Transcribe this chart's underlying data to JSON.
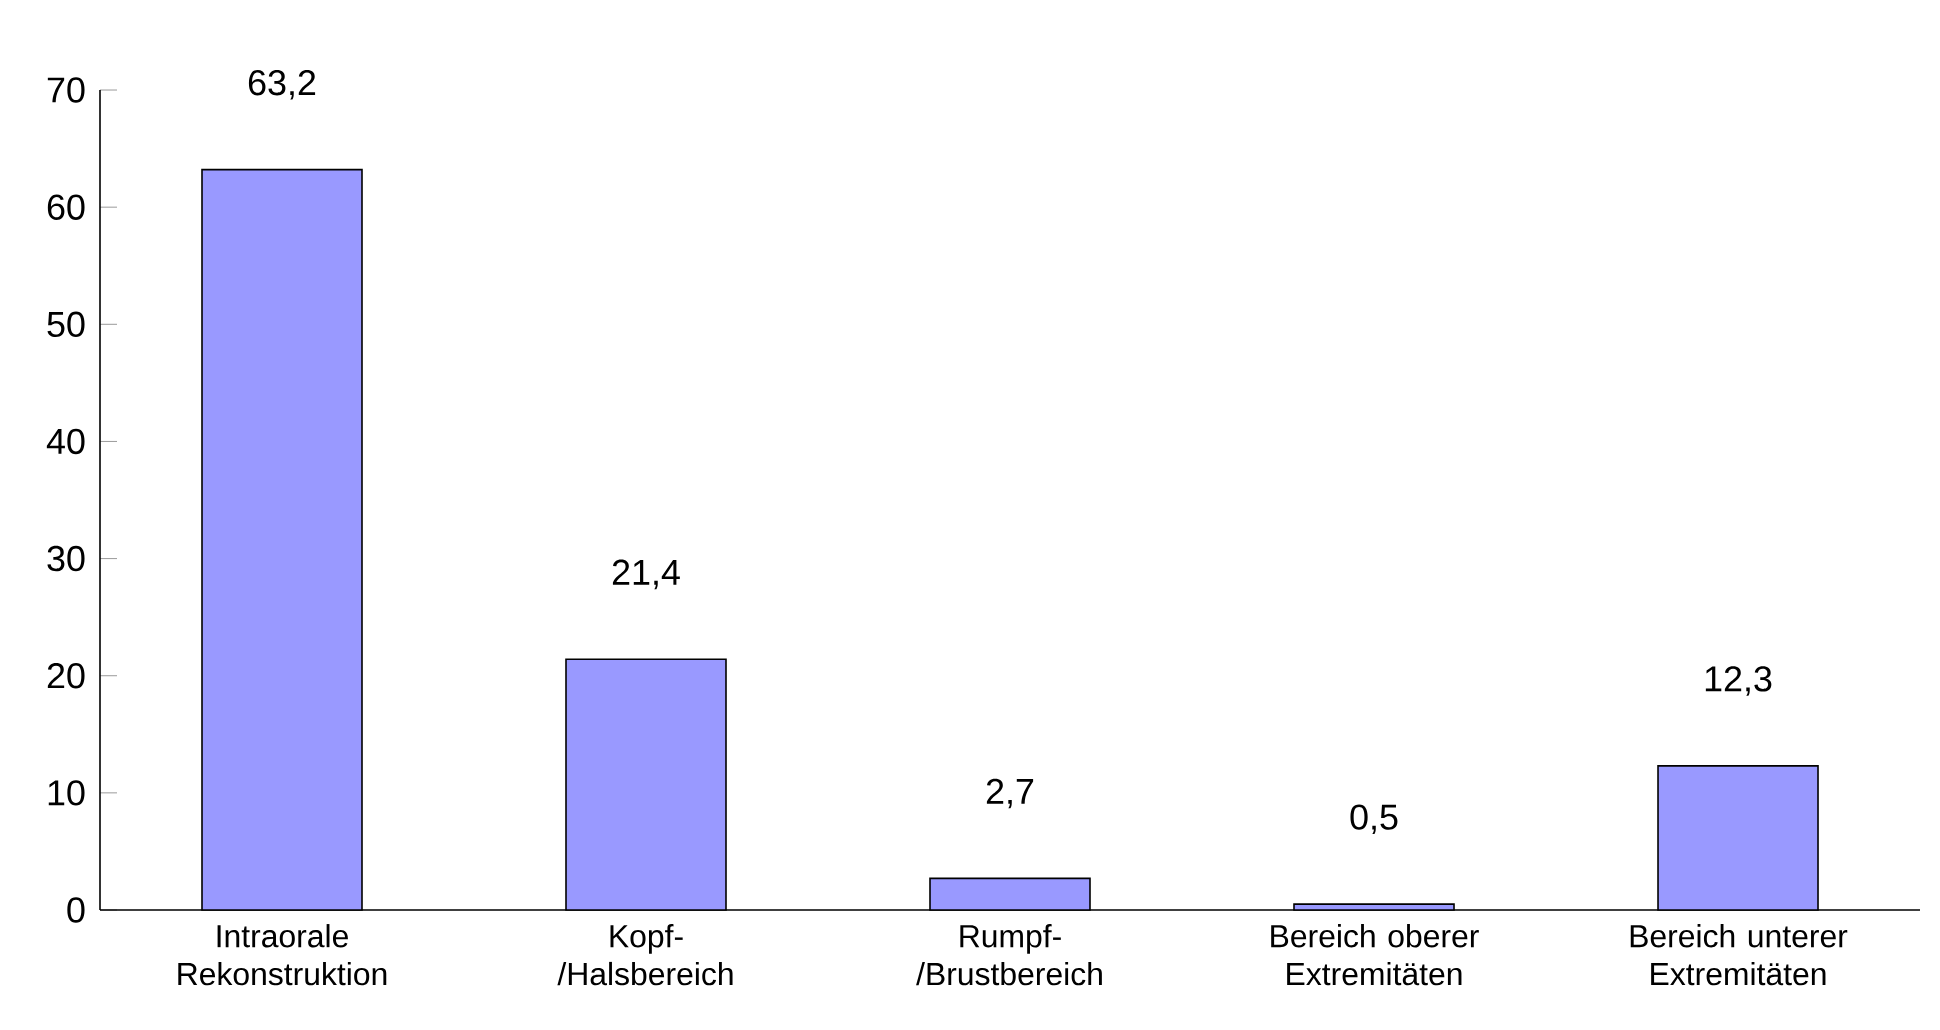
{
  "chart_data": {
    "type": "bar",
    "categories": [
      "Intraorale Rekonstruktion",
      "Kopf- /Halsbereich",
      "Rumpf- /Brustbereich",
      "Bereich oberer Extremitäten",
      "Bereich unterer Extremitäten"
    ],
    "values": [
      63.2,
      21.4,
      2.7,
      0.5,
      12.3
    ],
    "value_labels": [
      "63,2",
      "21,4",
      "2,7",
      "0,5",
      "12,3"
    ],
    "color": "#9999ff",
    "ylim": [
      0,
      70
    ],
    "yticks": [
      0,
      10,
      20,
      30,
      40,
      50,
      60,
      70
    ],
    "grid": false
  }
}
